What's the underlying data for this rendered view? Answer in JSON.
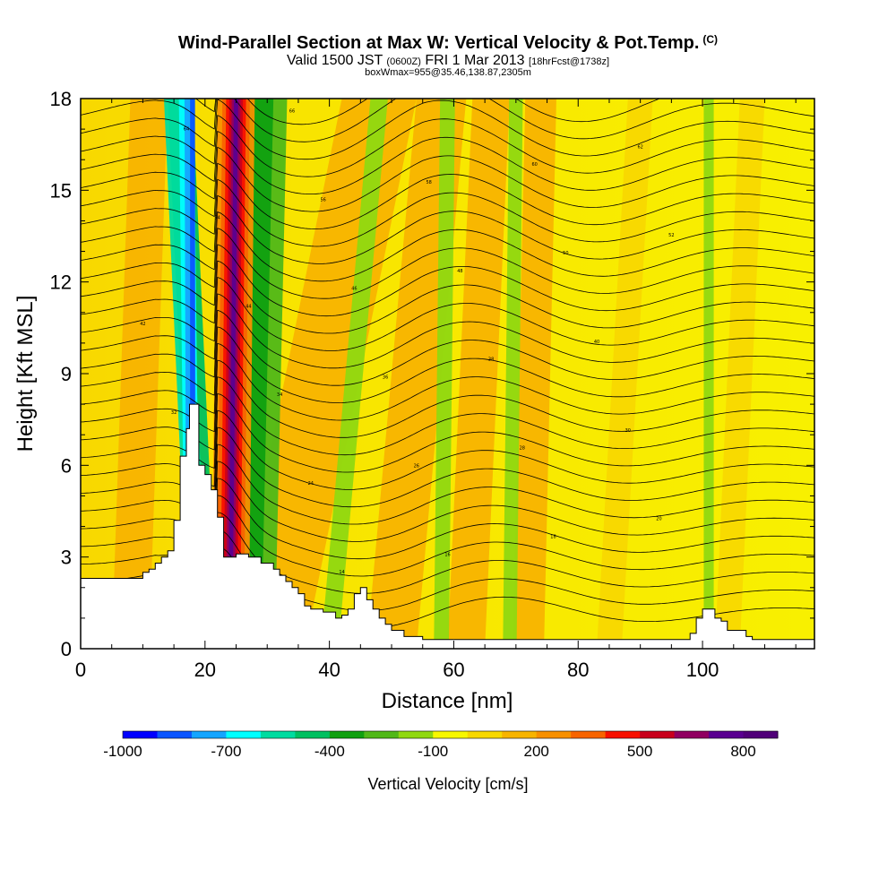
{
  "header": {
    "title": "Wind-Parallel Section at Max W: Vertical Velocity & Pot.Temp.",
    "title_tag": "(C)",
    "subtitle_a": "Valid 1500 JST",
    "subtitle_b": "(0600Z)",
    "subtitle_c": "FRI 1 Mar 2013",
    "subtitle_d": "[18hrFcst@1738z]",
    "subtitle2": "boxWmax=955@35.46,138.87,2305m"
  },
  "chart_data": {
    "type": "heatmap",
    "xlabel": "Distance [nm]",
    "ylabel": "Height [Kft MSL]",
    "xlim": [
      0,
      118
    ],
    "ylim": [
      0,
      18
    ],
    "x_ticks": [
      "0",
      "20",
      "40",
      "60",
      "80",
      "100"
    ],
    "x_tick_values": [
      0,
      20,
      40,
      60,
      80,
      100
    ],
    "y_ticks": [
      "0",
      "3",
      "6",
      "9",
      "12",
      "15",
      "18"
    ],
    "y_tick_values": [
      0,
      3,
      6,
      9,
      12,
      15,
      18
    ],
    "colorbar": {
      "title": "Vertical Velocity [cm/s]",
      "labels": [
        "-1000",
        "-700",
        "-400",
        "-100",
        "200",
        "500",
        "800"
      ],
      "label_values": [
        -1000,
        -700,
        -400,
        -100,
        200,
        500,
        800
      ],
      "range": [
        -1000,
        900
      ],
      "colors": [
        "#0000ff",
        "#0a55ff",
        "#14a5ff",
        "#00ffff",
        "#00dca0",
        "#00c060",
        "#10a010",
        "#50b818",
        "#90d810",
        "#f8f800",
        "#f8d800",
        "#f8b400",
        "#f89000",
        "#f86400",
        "#f81000",
        "#c8001c",
        "#900060",
        "#5a0090",
        "#500078"
      ]
    },
    "terrain_profile": {
      "description": "cross-section terrain height",
      "x_nm": [
        0,
        5,
        9,
        10,
        11,
        12,
        13,
        14,
        15,
        16,
        17,
        17.5,
        18,
        19,
        20,
        21,
        22,
        23,
        24,
        25,
        26,
        27,
        28,
        29,
        30,
        31,
        32,
        33,
        34,
        35,
        36,
        37,
        38,
        39,
        40,
        41,
        42,
        43,
        44,
        45,
        46,
        47,
        48,
        49,
        50,
        52,
        55,
        58,
        60,
        65,
        70,
        75,
        80,
        85,
        90,
        95,
        97,
        98,
        99,
        100,
        101,
        102,
        103,
        104,
        105,
        106,
        107,
        108,
        110,
        115,
        118
      ],
      "height_kft": [
        2.3,
        2.3,
        2.3,
        2.5,
        2.6,
        2.8,
        3.0,
        3.2,
        4.2,
        6.3,
        7.2,
        8.0,
        8.0,
        6.0,
        5.7,
        5.2,
        4.3,
        3.0,
        3.0,
        3.1,
        3.1,
        3.0,
        3.0,
        2.8,
        2.8,
        2.6,
        2.4,
        2.2,
        2.0,
        1.8,
        1.4,
        1.3,
        1.3,
        1.2,
        1.2,
        1.0,
        1.1,
        1.3,
        1.8,
        2.0,
        1.6,
        1.3,
        1.0,
        0.8,
        0.6,
        0.4,
        0.3,
        0.3,
        0.3,
        0.3,
        0.3,
        0.3,
        0.3,
        0.3,
        0.3,
        0.3,
        0.3,
        0.5,
        1.0,
        1.3,
        1.3,
        1.0,
        0.9,
        0.6,
        0.6,
        0.6,
        0.4,
        0.3,
        0.3,
        0.3,
        0.3
      ]
    }
  }
}
